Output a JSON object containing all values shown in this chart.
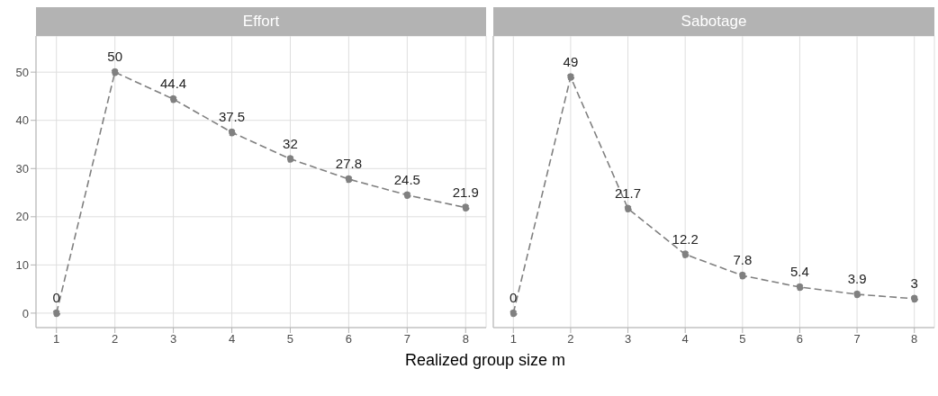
{
  "chart_data": [
    {
      "type": "line",
      "title": "Effort",
      "xlabel": "Realized group size m",
      "x": [
        1,
        2,
        3,
        4,
        5,
        6,
        7,
        8
      ],
      "series": [
        {
          "color": "#808080",
          "values": [
            0,
            50,
            44.4,
            37.5,
            32,
            27.8,
            24.5,
            21.9
          ]
        }
      ],
      "xlim": [
        0.65,
        8.35
      ],
      "xticks": [
        1,
        2,
        3,
        4,
        5,
        6,
        7,
        8
      ],
      "ylim": [
        -3,
        57.5
      ],
      "yticks": [
        0,
        10,
        20,
        30,
        40,
        50
      ],
      "grid": true,
      "marker": "circle",
      "line_style": "dashed",
      "data_labels": true
    },
    {
      "type": "line",
      "title": "Sabotage",
      "x": [
        1,
        2,
        3,
        4,
        5,
        6,
        7,
        8
      ],
      "series": [
        {
          "color": "#808080",
          "values": [
            0,
            49,
            21.7,
            12.2,
            7.8,
            5.4,
            3.9,
            3
          ]
        }
      ],
      "xlim": [
        0.65,
        8.35
      ],
      "xticks": [
        1,
        2,
        3,
        4,
        5,
        6,
        7,
        8
      ],
      "ylim": [
        -3,
        57.5
      ],
      "yticks": [
        0,
        10,
        20,
        30,
        40,
        50
      ],
      "grid": true,
      "marker": "circle",
      "line_style": "dashed",
      "data_labels": true,
      "tick_labels": "x"
    }
  ]
}
